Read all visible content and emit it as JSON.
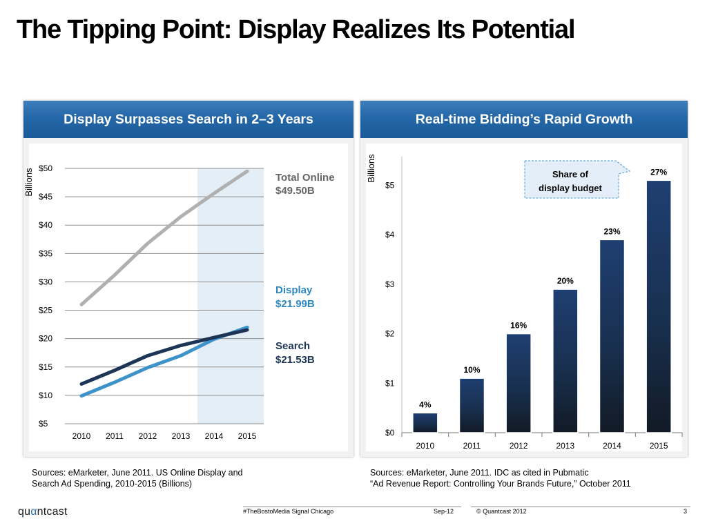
{
  "slide": {
    "title": "The Tipping Point: Display Realizes Its Potential",
    "footer": {
      "logo_pre": "qu",
      "logo_accent": "α",
      "logo_post": "ntcast",
      "event": "#TheBostoMedia Signal Chicago",
      "date": "Sep-12",
      "copyright": "© Quantcast 2012",
      "page": "3"
    }
  },
  "left": {
    "header": "Display Surpasses Search in 2–3 Years",
    "units": "Billions",
    "source_line1": "Sources:  eMarketer, June 2011.  US Online Display and",
    "source_line2": "Search Ad Spending, 2010-2015 (Billions)",
    "labels": {
      "total_name": "Total Online",
      "total_value": "$49.50B",
      "display_name": "Display",
      "display_value": "$21.99B",
      "search_name": "Search",
      "search_value": "$21.53B"
    },
    "colors": {
      "total": "#b0b0b0",
      "display": "#3c92c9",
      "search": "#1c3556",
      "label_blue": "#2e86c1",
      "shade": "#e4eef6"
    }
  },
  "right": {
    "header": "Real-time Bidding’s Rapid Growth",
    "units": "Billions",
    "callout_line1": "Share of",
    "callout_line2": "display budget",
    "source_line1": "Sources:  eMarketer, June 2011. IDC as cited in Pubmatic",
    "source_line2": "“Ad Revenue Report: Controlling Your Brands Future,” October 2011"
  },
  "chart_data": [
    {
      "type": "line",
      "x": [
        "2010",
        "2011",
        "2012",
        "2013",
        "2014",
        "2015"
      ],
      "y_ticks": [
        "$5",
        "$10",
        "$15",
        "$20",
        "$25",
        "$30",
        "$35",
        "$40",
        "$45",
        "$50"
      ],
      "ylim": [
        5,
        50
      ],
      "highlight_range": [
        "2014",
        "2015"
      ],
      "grid": true,
      "series": [
        {
          "name": "Total Online",
          "values": [
            26.0,
            31.2,
            36.8,
            41.5,
            45.6,
            49.5
          ]
        },
        {
          "name": "Display",
          "values": [
            9.9,
            12.3,
            14.9,
            17.0,
            19.9,
            21.99
          ]
        },
        {
          "name": "Search",
          "values": [
            12.0,
            14.4,
            17.0,
            18.8,
            20.2,
            21.53
          ]
        }
      ]
    },
    {
      "type": "bar",
      "categories": [
        "2010",
        "2011",
        "2012",
        "2013",
        "2014",
        "2015"
      ],
      "values": [
        0.4,
        1.1,
        2.0,
        2.9,
        3.9,
        5.1
      ],
      "data_labels": [
        "4%",
        "10%",
        "16%",
        "20%",
        "23%",
        "27%"
      ],
      "y_ticks": [
        "$0",
        "$1",
        "$2",
        "$3",
        "$4",
        "$5"
      ],
      "ylim": [
        0,
        5.3
      ],
      "grid": false
    }
  ]
}
